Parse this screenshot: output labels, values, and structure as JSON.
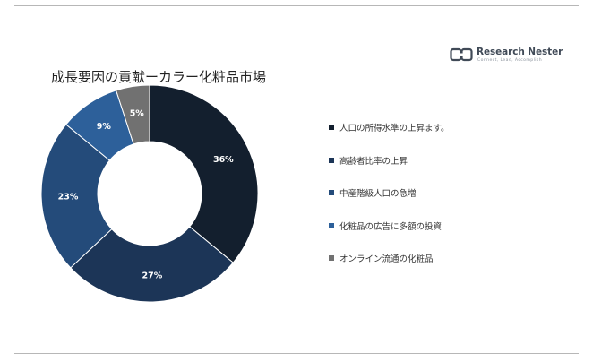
{
  "logo": {
    "name": "Research Nester",
    "tagline": "Connect, Lead, Accomplish"
  },
  "title": "成長要因の貢献ーカラー化粧品市場",
  "chart_data": {
    "type": "pie",
    "donut": true,
    "legend_position": "right",
    "slices": [
      {
        "label": "人口の所得水準の上昇ます。",
        "value": 36,
        "value_label": "36%",
        "color": "#131f2e"
      },
      {
        "label": "高齢者比率の上昇",
        "value": 27,
        "value_label": "27%",
        "color": "#1c3557"
      },
      {
        "label": "中産階級人口の急増",
        "value": 23,
        "value_label": "23%",
        "color": "#244b7a"
      },
      {
        "label": "化粧品の広告に多額の投資",
        "value": 9,
        "value_label": "9%",
        "color": "#2d609a"
      },
      {
        "label": "オンライン流通の化粧品",
        "value": 5,
        "value_label": "5%",
        "color": "#717171"
      }
    ]
  }
}
